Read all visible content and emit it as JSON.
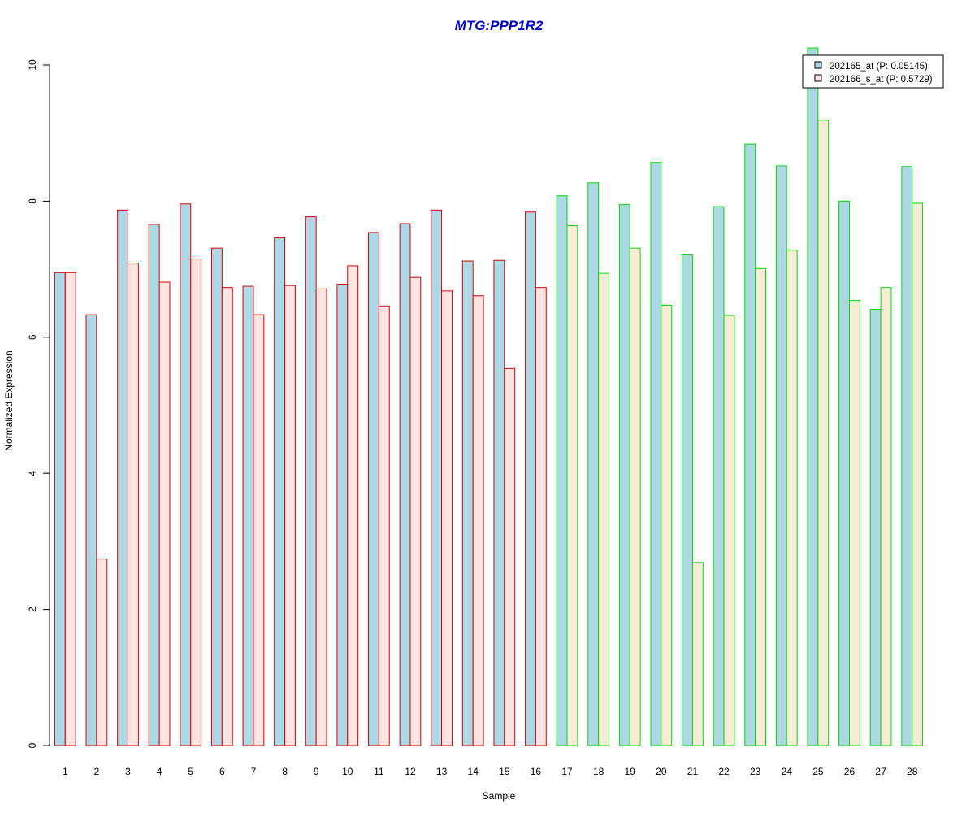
{
  "chart_data": {
    "type": "bar",
    "title": "MTG:PPP1R2",
    "title_color": "#0000cc",
    "xlabel": "Sample",
    "ylabel": "Normalized Expression",
    "ylim": [
      0,
      10
    ],
    "y_ticks": [
      "0",
      "2",
      "4",
      "6",
      "8",
      "10"
    ],
    "grid": false,
    "legend_position": "top-right",
    "categories": [
      "1",
      "2",
      "3",
      "4",
      "5",
      "6",
      "7",
      "8",
      "9",
      "10",
      "11",
      "12",
      "13",
      "14",
      "15",
      "16",
      "17",
      "18",
      "19",
      "20",
      "21",
      "22",
      "23",
      "24",
      "25",
      "26",
      "27",
      "28"
    ],
    "groups": [
      {
        "samples": [
          1,
          16
        ],
        "outline_color": "#dd0000"
      },
      {
        "samples": [
          17,
          28
        ],
        "outline_color": "#00dd00"
      }
    ],
    "series": [
      {
        "name": "202165_at (P: 0.05145)",
        "fill": "#add8e6",
        "values": [
          6.95,
          6.33,
          7.87,
          7.66,
          7.96,
          7.31,
          6.75,
          7.46,
          7.77,
          6.78,
          7.54,
          7.67,
          7.87,
          7.12,
          7.13,
          7.84,
          8.08,
          8.27,
          7.95,
          8.57,
          7.21,
          7.92,
          8.84,
          8.52,
          10.25,
          8.0,
          6.41,
          8.51
        ]
      },
      {
        "name": "202166_s_at (P: 0.5729)",
        "fill_group1": "#ffe4e1",
        "fill_group2": "#faebd7",
        "values": [
          6.95,
          2.74,
          7.09,
          6.81,
          7.15,
          6.73,
          6.33,
          6.76,
          6.71,
          7.05,
          6.46,
          6.88,
          6.68,
          6.61,
          5.54,
          6.73,
          7.64,
          6.94,
          7.31,
          6.47,
          2.69,
          6.32,
          7.01,
          7.28,
          9.19,
          6.54,
          6.73,
          7.97
        ]
      }
    ]
  }
}
